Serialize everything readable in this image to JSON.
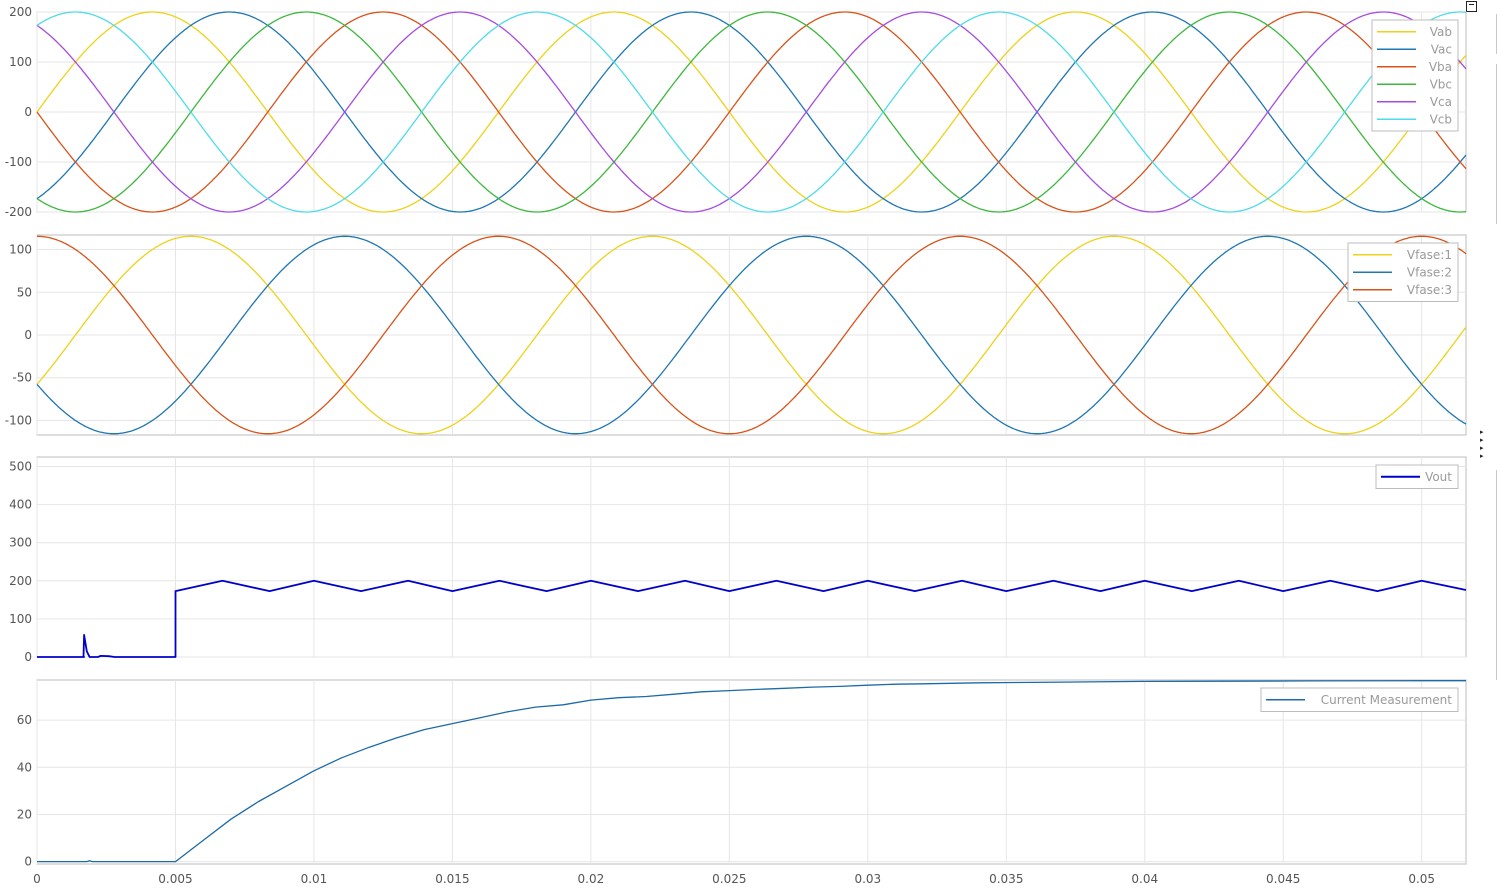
{
  "chart_data": [
    {
      "type": "line",
      "title": "",
      "xlabel": "",
      "ylabel": "",
      "xlim": [
        0,
        0.0516
      ],
      "ylim": [
        -200,
        200
      ],
      "yticks": [
        -200,
        -100,
        0,
        100,
        200
      ],
      "grid": true,
      "legend_position": "top-right",
      "series": [
        {
          "name": "Vab",
          "color": "#edd21a",
          "amplitude": 200,
          "frequency_hz": 60,
          "phase_deg": 0
        },
        {
          "name": "Vac",
          "color": "#1f77b4",
          "amplitude": 200,
          "frequency_hz": 60,
          "phase_deg": -60
        },
        {
          "name": "Vba",
          "color": "#d95319",
          "amplitude": 200,
          "frequency_hz": 60,
          "phase_deg": 180
        },
        {
          "name": "Vbc",
          "color": "#3cb83c",
          "amplitude": 200,
          "frequency_hz": 60,
          "phase_deg": -120
        },
        {
          "name": "Vca",
          "color": "#a64ce0",
          "amplitude": 200,
          "frequency_hz": 60,
          "phase_deg": 120
        },
        {
          "name": "Vcb",
          "color": "#4ddce8",
          "amplitude": 200,
          "frequency_hz": 60,
          "phase_deg": 60
        }
      ]
    },
    {
      "type": "line",
      "title": "",
      "xlabel": "",
      "ylabel": "",
      "xlim": [
        0,
        0.0516
      ],
      "ylim": [
        -117,
        117
      ],
      "yticks": [
        -100,
        -50,
        0,
        50,
        100
      ],
      "grid": true,
      "legend_position": "top-right",
      "series": [
        {
          "name": "Vfase:1",
          "color": "#edd21a",
          "amplitude": 115.5,
          "frequency_hz": 60,
          "phase_deg": -30
        },
        {
          "name": "Vfase:2",
          "color": "#1f77b4",
          "amplitude": 115.5,
          "frequency_hz": 60,
          "phase_deg": -150
        },
        {
          "name": "Vfase:3",
          "color": "#d95319",
          "amplitude": 115.5,
          "frequency_hz": 60,
          "phase_deg": 90
        }
      ]
    },
    {
      "type": "line",
      "title": "",
      "xlabel": "",
      "ylabel": "",
      "xlim": [
        0,
        0.0516
      ],
      "ylim": [
        0,
        525
      ],
      "yticks": [
        0,
        100,
        200,
        300,
        400,
        500
      ],
      "grid": true,
      "legend_position": "top-right",
      "series": [
        {
          "name": "Vout",
          "color": "#0000cc",
          "points": [
            [
              0,
              0
            ],
            [
              0.0017,
              0
            ],
            [
              0.00168,
              0
            ],
            [
              0.0017,
              58
            ],
            [
              0.0018,
              15
            ],
            [
              0.0019,
              0
            ],
            [
              0.0022,
              0
            ],
            [
              0.0023,
              3
            ],
            [
              0.0026,
              2
            ],
            [
              0.0028,
              0
            ],
            [
              0.005,
              0
            ],
            [
              0.005,
              173
            ],
            [
              0.0067,
              200
            ],
            [
              0.0084,
              173
            ],
            [
              0.01,
              200
            ],
            [
              0.0117,
              173
            ],
            [
              0.0134,
              200
            ],
            [
              0.015,
              173
            ],
            [
              0.0167,
              200
            ],
            [
              0.0184,
              173
            ],
            [
              0.02,
              200
            ],
            [
              0.0217,
              173
            ],
            [
              0.0234,
              200
            ],
            [
              0.025,
              173
            ],
            [
              0.0267,
              200
            ],
            [
              0.0284,
              173
            ],
            [
              0.03,
              200
            ],
            [
              0.0317,
              173
            ],
            [
              0.0334,
              200
            ],
            [
              0.035,
              173
            ],
            [
              0.0367,
              200
            ],
            [
              0.0384,
              173
            ],
            [
              0.04,
              200
            ],
            [
              0.0417,
              173
            ],
            [
              0.0434,
              200
            ],
            [
              0.045,
              173
            ],
            [
              0.0467,
              200
            ],
            [
              0.0484,
              173
            ],
            [
              0.05,
              200
            ],
            [
              0.0516,
              176
            ]
          ]
        }
      ]
    },
    {
      "type": "line",
      "title": "",
      "xlabel": "",
      "ylabel": "",
      "xlim": [
        0,
        0.0516
      ],
      "ylim": [
        -1,
        77
      ],
      "yticks": [
        0,
        20,
        40,
        60
      ],
      "xticks": [
        0,
        0.005,
        0.01,
        0.015,
        0.02,
        0.025,
        0.03,
        0.035,
        0.04,
        0.045,
        0.05
      ],
      "grid": true,
      "legend_position": "top-right",
      "series": [
        {
          "name": "Current Measurement",
          "color": "#1c6aa8",
          "points": [
            [
              0,
              0
            ],
            [
              0.0018,
              0
            ],
            [
              0.0019,
              0.4
            ],
            [
              0.002,
              0
            ],
            [
              0.005,
              0
            ],
            [
              0.006,
              9
            ],
            [
              0.007,
              18
            ],
            [
              0.008,
              25.5
            ],
            [
              0.009,
              32
            ],
            [
              0.01,
              38.5
            ],
            [
              0.011,
              44
            ],
            [
              0.012,
              48.5
            ],
            [
              0.013,
              52.5
            ],
            [
              0.014,
              56
            ],
            [
              0.015,
              58.5
            ],
            [
              0.016,
              61
            ],
            [
              0.017,
              63.5
            ],
            [
              0.018,
              65.5
            ],
            [
              0.019,
              66.5
            ],
            [
              0.02,
              68.5
            ],
            [
              0.021,
              69.5
            ],
            [
              0.022,
              70
            ],
            [
              0.023,
              71
            ],
            [
              0.024,
              72
            ],
            [
              0.025,
              72.5
            ],
            [
              0.026,
              73
            ],
            [
              0.027,
              73.5
            ],
            [
              0.028,
              74
            ],
            [
              0.029,
              74.3
            ],
            [
              0.03,
              74.8
            ],
            [
              0.031,
              75.2
            ],
            [
              0.032,
              75.4
            ],
            [
              0.034,
              75.8
            ],
            [
              0.036,
              76
            ],
            [
              0.038,
              76.2
            ],
            [
              0.04,
              76.4
            ],
            [
              0.043,
              76.5
            ],
            [
              0.046,
              76.6
            ],
            [
              0.05,
              76.7
            ],
            [
              0.0516,
              76.7
            ]
          ]
        }
      ]
    }
  ],
  "controls": {
    "undock_icon": "undock-icon",
    "resize_icon": "triangle-right-icon",
    "resize_glyphs": [
      "▸",
      "▸",
      "▸",
      "▸"
    ]
  }
}
